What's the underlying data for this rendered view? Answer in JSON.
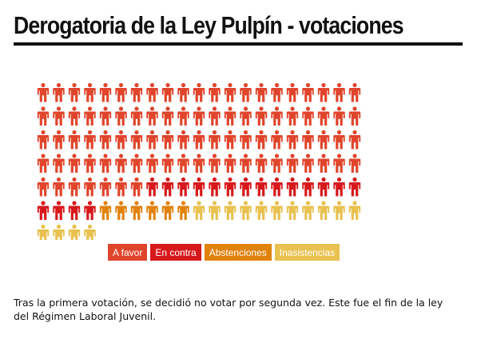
{
  "title": "Derogatoria de la Ley Pulpín - votaciones",
  "chart_data": {
    "type": "pictogram",
    "icon": "person-icon",
    "icons_per_row": 21,
    "categories": [
      "A favor",
      "En contra",
      "Abstenciones",
      "Inasistencias"
    ],
    "values": [
      91,
      18,
      6,
      15
    ],
    "colors": [
      "#e0452c",
      "#d7191c",
      "#e0820c",
      "#e8c150"
    ],
    "legend_position": "bottom-center"
  },
  "legend": [
    {
      "label": "A favor",
      "color": "#e0452c"
    },
    {
      "label": "En contra",
      "color": "#d7191c"
    },
    {
      "label": "Abstenciones",
      "color": "#e0820c"
    },
    {
      "label": "Inasistencias",
      "color": "#e8c150"
    }
  ],
  "note": "Tras la primera votación, se decidió no votar por segunda vez. Este fue el fin de la ley del Régimen Laboral Juvenil."
}
